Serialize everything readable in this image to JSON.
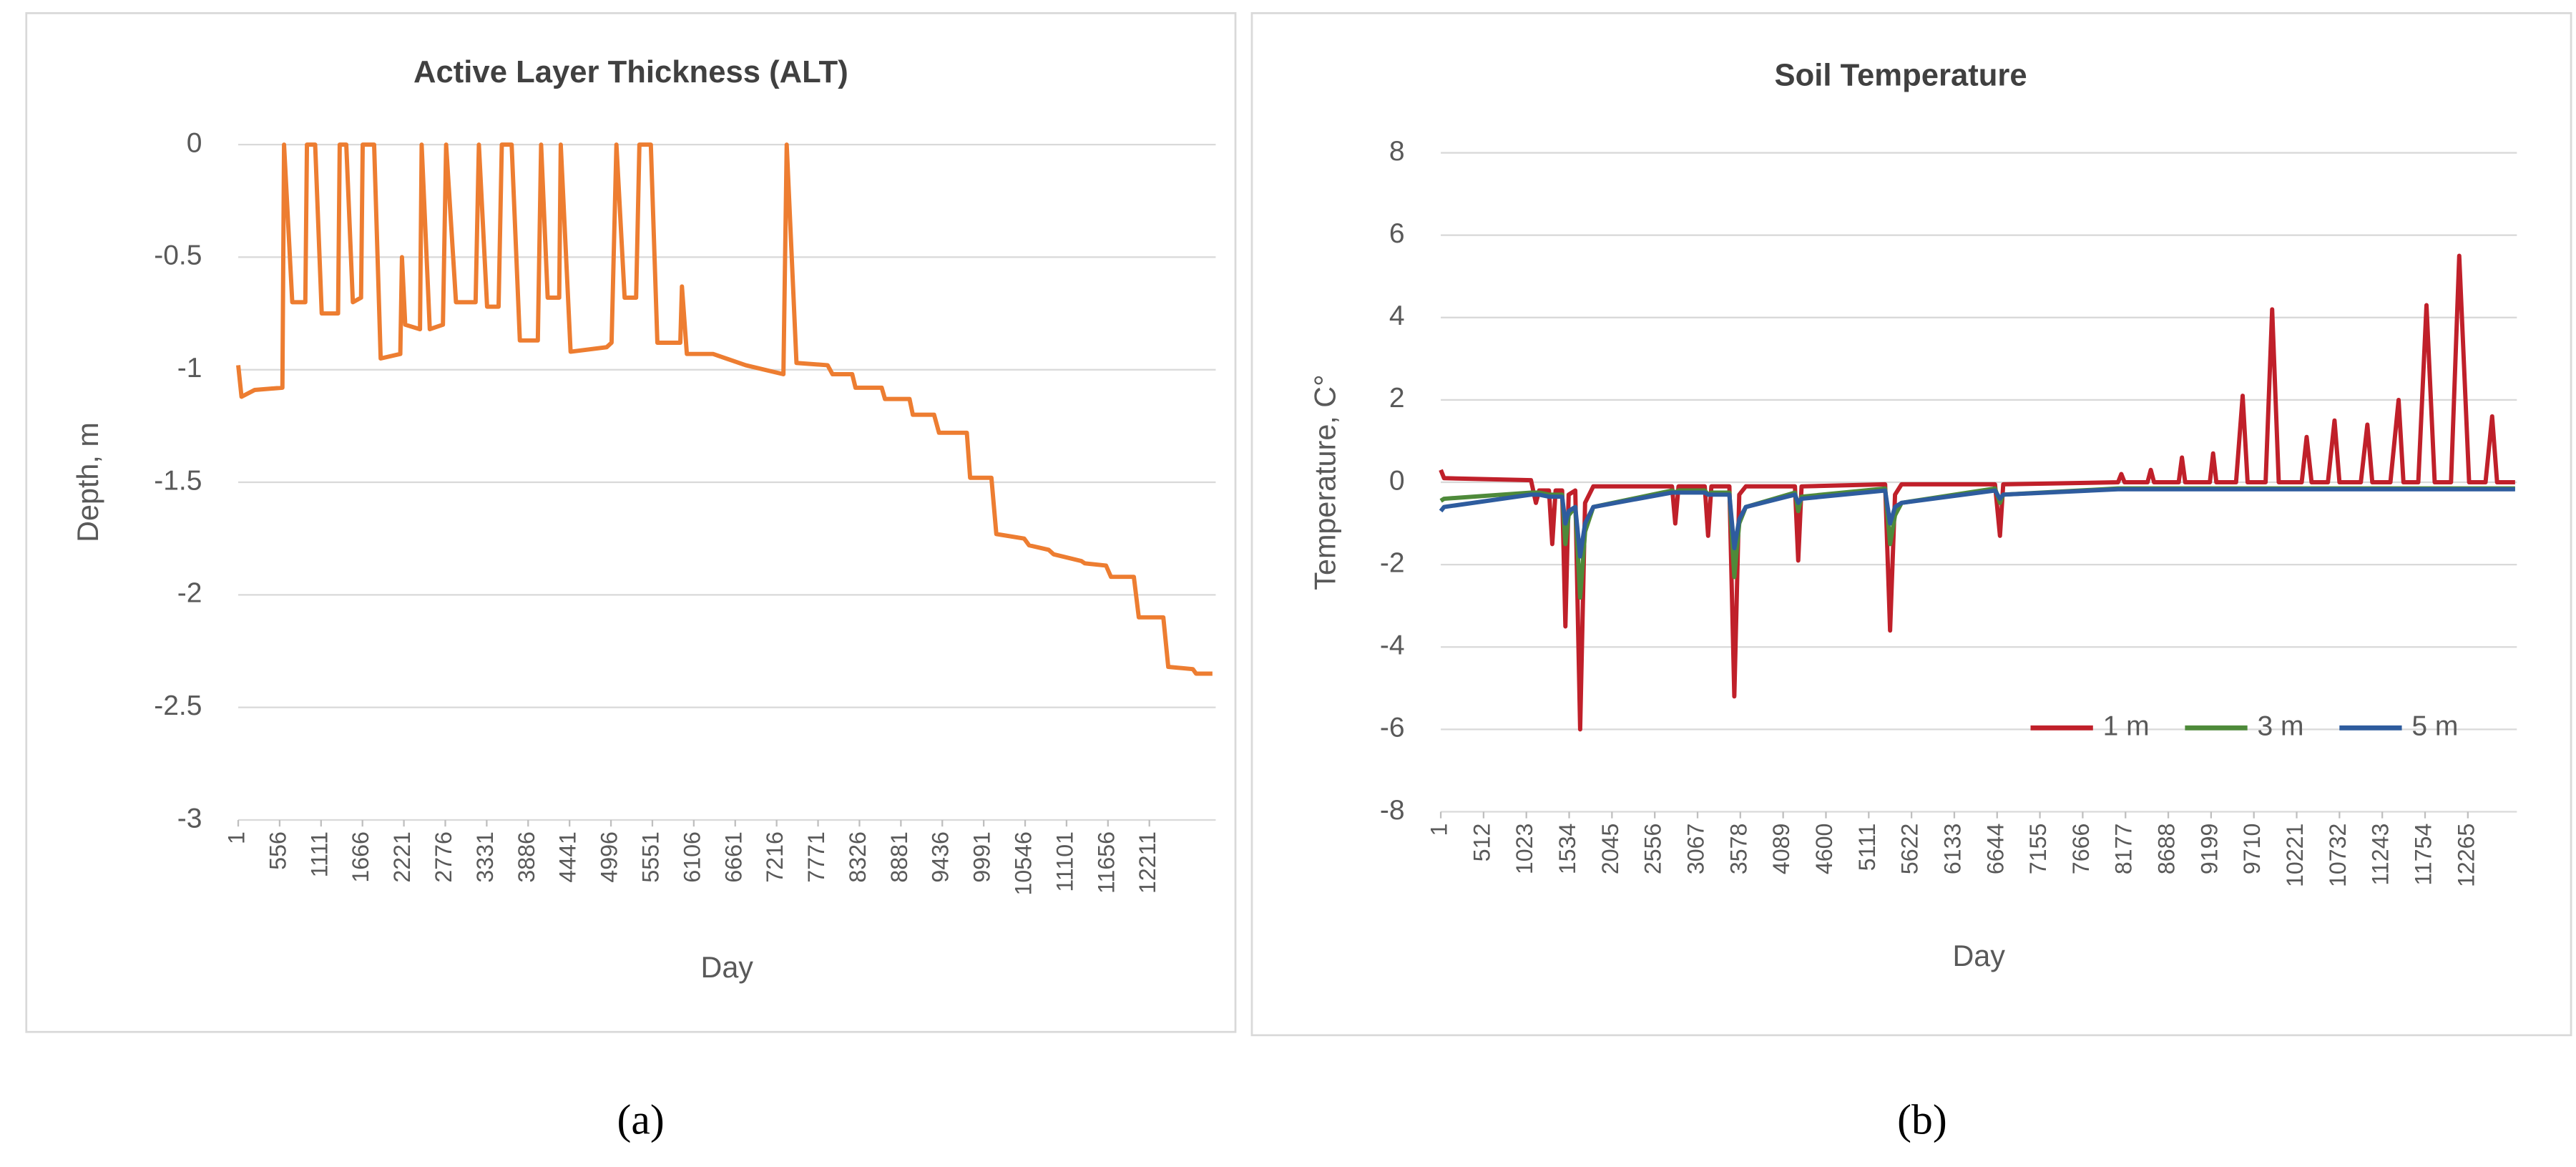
{
  "chart_data": [
    {
      "type": "line",
      "title": "Active Layer Thickness (ALT)",
      "xlabel": "Day",
      "ylabel": "Depth, m",
      "caption": "(a)",
      "color": "#ed7d31",
      "grid": true,
      "xlim": [
        1,
        13100
      ],
      "ylim": [
        -3,
        0
      ],
      "xticks": [
        1,
        556,
        1111,
        1666,
        2221,
        2776,
        3331,
        3886,
        4441,
        4996,
        5551,
        6106,
        6661,
        7216,
        7771,
        8326,
        8881,
        9436,
        9991,
        10546,
        11101,
        11656,
        12211
      ],
      "yticks": [
        0,
        -0.5,
        -1,
        -1.5,
        -2,
        -2.5,
        -3
      ],
      "x": [
        1,
        45,
        220,
        593,
        615,
        725,
        900,
        922,
        1032,
        1120,
        1339,
        1361,
        1449,
        1537,
        1647,
        1669,
        1822,
        1910,
        2173,
        2195,
        2239,
        2437,
        2459,
        2568,
        2744,
        2787,
        2919,
        3182,
        3226,
        3336,
        3490,
        3533,
        3665,
        3775,
        4016,
        4060,
        4148,
        4302,
        4323,
        4455,
        4938,
        5004,
        5069,
        5179,
        5333,
        5377,
        5530,
        5618,
        5925,
        5947,
        6013,
        6364,
        6802,
        7307,
        7351,
        7482,
        7899,
        7965,
        8229,
        8273,
        8624,
        8668,
        8997,
        9041,
        9326,
        9392,
        9765,
        9809,
        10094,
        10160,
        10533,
        10599,
        10862,
        10928,
        11301,
        11345,
        11630,
        11696,
        12003,
        12069,
        12398,
        12464,
        12793,
        12837,
        13056
      ],
      "values": [
        -0.98,
        -1.12,
        -1.09,
        -1.08,
        0,
        -0.7,
        -0.7,
        0,
        0,
        -0.75,
        -0.75,
        0,
        0,
        -0.7,
        -0.68,
        0,
        0,
        -0.95,
        -0.93,
        -0.5,
        -0.8,
        -0.82,
        0,
        -0.82,
        -0.8,
        0,
        -0.7,
        -0.7,
        0,
        -0.72,
        -0.72,
        0,
        0,
        -0.87,
        -0.87,
        0,
        -0.68,
        -0.68,
        0,
        -0.92,
        -0.9,
        -0.88,
        0,
        -0.68,
        -0.68,
        0,
        0,
        -0.88,
        -0.88,
        -0.63,
        -0.93,
        -0.93,
        -0.98,
        -1.02,
        0,
        -0.97,
        -0.98,
        -1.02,
        -1.02,
        -1.08,
        -1.08,
        -1.13,
        -1.13,
        -1.2,
        -1.2,
        -1.28,
        -1.28,
        -1.48,
        -1.48,
        -1.73,
        -1.75,
        -1.78,
        -1.8,
        -1.82,
        -1.85,
        -1.86,
        -1.87,
        -1.92,
        -1.92,
        -2.1,
        -2.1,
        -2.32,
        -2.33,
        -2.35,
        -2.35
      ]
    },
    {
      "type": "line",
      "title": "Soil Temperature",
      "xlabel": "Day",
      "ylabel": "Temperature, C°",
      "caption": "(b)",
      "grid": true,
      "legend": "lower right",
      "xlim": [
        1,
        12850
      ],
      "ylim": [
        -8,
        8
      ],
      "xticks": [
        1,
        512,
        1023,
        1534,
        2045,
        2556,
        3067,
        3578,
        4089,
        4600,
        5111,
        5622,
        6133,
        6644,
        7155,
        7666,
        8177,
        8688,
        9199,
        9710,
        10221,
        10732,
        11243,
        11754,
        12265
      ],
      "yticks": [
        8,
        6,
        4,
        2,
        0,
        -2,
        -4,
        -6,
        -8
      ],
      "x": [
        1,
        40,
        1078,
        1137,
        1176,
        1293,
        1332,
        1372,
        1450,
        1489,
        1528,
        1607,
        1665,
        1724,
        1822,
        2762,
        2801,
        2840,
        3153,
        3193,
        3232,
        3447,
        3506,
        3565,
        3643,
        4230,
        4269,
        4309,
        5307,
        5366,
        5425,
        5503,
        6619,
        6678,
        6717,
        8088,
        8127,
        8166,
        8440,
        8479,
        8518,
        8812,
        8851,
        8890,
        9184,
        9223,
        9262,
        9497,
        9576,
        9635,
        9850,
        9928,
        10007,
        10281,
        10340,
        10399,
        10594,
        10673,
        10732,
        10987,
        11065,
        11124,
        11340,
        11438,
        11496,
        11673,
        11771,
        11869,
        12064,
        12162,
        12280,
        12476,
        12555,
        12614,
        12829
      ],
      "series": [
        {
          "name": "1 m",
          "color": "#c0202a",
          "values": [
            0.3,
            0.1,
            0.05,
            -0.5,
            -0.2,
            -0.2,
            -1.5,
            -0.2,
            -0.2,
            -3.5,
            -0.3,
            -0.2,
            -6.0,
            -0.5,
            -0.1,
            -0.1,
            -1.0,
            -0.1,
            -0.1,
            -1.3,
            -0.1,
            -0.1,
            -5.2,
            -0.3,
            -0.1,
            -0.1,
            -1.9,
            -0.1,
            -0.05,
            -3.6,
            -0.3,
            -0.05,
            -0.05,
            -1.3,
            -0.05,
            0,
            0.2,
            0,
            0,
            0.3,
            0,
            0,
            0.6,
            0,
            0,
            0.7,
            0,
            0,
            2.1,
            0,
            0,
            4.2,
            0,
            0,
            1.1,
            0,
            0,
            1.5,
            0,
            0,
            1.4,
            0,
            0,
            2.0,
            0,
            0,
            4.3,
            0,
            0,
            5.5,
            0,
            0,
            1.6,
            0,
            0
          ]
        },
        {
          "name": "3 m",
          "color": "#4e8a3a",
          "values": [
            -0.45,
            -0.4,
            -0.25,
            -0.25,
            -0.25,
            -0.3,
            -0.3,
            -0.3,
            -0.3,
            -1.5,
            -0.8,
            -0.6,
            -2.8,
            -1.2,
            -0.6,
            -0.2,
            -0.25,
            -0.2,
            -0.2,
            -0.3,
            -0.25,
            -0.25,
            -2.3,
            -1.0,
            -0.6,
            -0.25,
            -0.7,
            -0.35,
            -0.15,
            -1.5,
            -0.8,
            -0.5,
            -0.15,
            -0.5,
            -0.3,
            -0.15,
            -0.15,
            -0.15,
            -0.15,
            -0.15,
            -0.15,
            -0.15,
            -0.15,
            -0.15,
            -0.15,
            -0.15,
            -0.15,
            -0.15,
            -0.15,
            -0.15,
            -0.15,
            -0.15,
            -0.15,
            -0.15,
            -0.15,
            -0.15,
            -0.15,
            -0.15,
            -0.15,
            -0.15,
            -0.15,
            -0.15,
            -0.15,
            -0.15,
            -0.15,
            -0.15,
            -0.15,
            -0.15,
            -0.15,
            -0.15,
            -0.15,
            -0.15,
            -0.15,
            -0.15,
            -0.15
          ]
        },
        {
          "name": "5 m",
          "color": "#2e5c9e",
          "values": [
            -0.7,
            -0.6,
            -0.3,
            -0.3,
            -0.3,
            -0.35,
            -0.35,
            -0.35,
            -0.35,
            -1.0,
            -0.7,
            -0.6,
            -1.8,
            -1.0,
            -0.6,
            -0.25,
            -0.25,
            -0.25,
            -0.25,
            -0.3,
            -0.3,
            -0.3,
            -1.6,
            -0.9,
            -0.6,
            -0.3,
            -0.5,
            -0.4,
            -0.2,
            -1.0,
            -0.6,
            -0.5,
            -0.2,
            -0.4,
            -0.3,
            -0.17,
            -0.17,
            -0.17,
            -0.17,
            -0.17,
            -0.17,
            -0.17,
            -0.17,
            -0.17,
            -0.17,
            -0.17,
            -0.17,
            -0.17,
            -0.17,
            -0.17,
            -0.17,
            -0.17,
            -0.17,
            -0.17,
            -0.17,
            -0.17,
            -0.17,
            -0.17,
            -0.17,
            -0.17,
            -0.17,
            -0.17,
            -0.17,
            -0.17,
            -0.17,
            -0.17,
            -0.17,
            -0.17,
            -0.17,
            -0.17,
            -0.17,
            -0.17,
            -0.17,
            -0.17,
            -0.17
          ]
        }
      ]
    }
  ]
}
